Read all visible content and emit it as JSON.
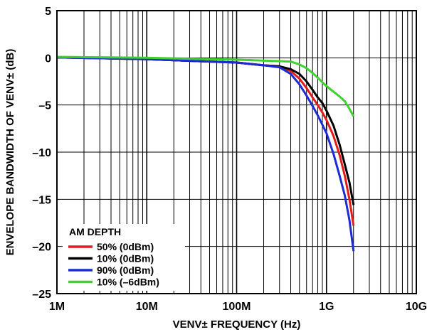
{
  "chart_data": {
    "type": "line",
    "xlabel": "VENV± FREQUENCY (Hz)",
    "ylabel": "ENVELOPE BANDWIDTH OF VENV± (dB)",
    "x_scale": "log",
    "xlim": [
      1000000,
      10000000000
    ],
    "ylim": [
      -25,
      5
    ],
    "x_ticks": [
      {
        "value": 1000000,
        "label": "1M"
      },
      {
        "value": 10000000,
        "label": "10M"
      },
      {
        "value": 100000000,
        "label": "100M"
      },
      {
        "value": 1000000000,
        "label": "1G"
      },
      {
        "value": 10000000000,
        "label": "10G"
      }
    ],
    "y_ticks": [
      {
        "value": 5,
        "label": "5"
      },
      {
        "value": 0,
        "label": "0"
      },
      {
        "value": -5,
        "label": "–5"
      },
      {
        "value": -10,
        "label": "–10"
      },
      {
        "value": -15,
        "label": "–15"
      },
      {
        "value": -20,
        "label": "–20"
      },
      {
        "value": -25,
        "label": "–25"
      }
    ],
    "grid": true,
    "legend": {
      "title": "AM DEPTH",
      "placement": "bottom-left"
    },
    "series": [
      {
        "name": "50% (0dBm)",
        "color": "#e31b1b",
        "points": [
          [
            1000000,
            0.05
          ],
          [
            10000000,
            -0.15
          ],
          [
            100000000,
            -0.5
          ],
          [
            200000000,
            -0.8
          ],
          [
            300000000,
            -0.9
          ],
          [
            400000000,
            -1.4
          ],
          [
            500000000,
            -2.2
          ],
          [
            600000000,
            -3.2
          ],
          [
            700000000,
            -4.2
          ],
          [
            800000000,
            -5.0
          ],
          [
            900000000,
            -5.8
          ],
          [
            1000000000,
            -6.6
          ],
          [
            1200000000,
            -8.3
          ],
          [
            1400000000,
            -10.3
          ],
          [
            1600000000,
            -12.5
          ],
          [
            1800000000,
            -15.0
          ],
          [
            2000000000,
            -17.8
          ]
        ]
      },
      {
        "name": "10% (0dBm)",
        "color": "#000000",
        "points": [
          [
            1000000,
            0.05
          ],
          [
            10000000,
            -0.15
          ],
          [
            100000000,
            -0.5
          ],
          [
            200000000,
            -0.8
          ],
          [
            300000000,
            -0.9
          ],
          [
            400000000,
            -1.2
          ],
          [
            500000000,
            -1.7
          ],
          [
            600000000,
            -2.5
          ],
          [
            700000000,
            -3.4
          ],
          [
            800000000,
            -4.2
          ],
          [
            900000000,
            -4.8
          ],
          [
            1000000000,
            -5.6
          ],
          [
            1200000000,
            -7.2
          ],
          [
            1400000000,
            -9.2
          ],
          [
            1600000000,
            -11.3
          ],
          [
            1800000000,
            -13.2
          ],
          [
            2000000000,
            -15.6
          ]
        ]
      },
      {
        "name": "90% (0dBm)",
        "color": "#1c2bd4",
        "points": [
          [
            1000000,
            0.05
          ],
          [
            10000000,
            -0.15
          ],
          [
            100000000,
            -0.5
          ],
          [
            200000000,
            -0.8
          ],
          [
            300000000,
            -1.0
          ],
          [
            400000000,
            -1.7
          ],
          [
            500000000,
            -2.8
          ],
          [
            600000000,
            -4.0
          ],
          [
            700000000,
            -5.1
          ],
          [
            800000000,
            -6.1
          ],
          [
            900000000,
            -7.1
          ],
          [
            1000000000,
            -8.0
          ],
          [
            1200000000,
            -10.2
          ],
          [
            1400000000,
            -12.5
          ],
          [
            1600000000,
            -14.6
          ],
          [
            1800000000,
            -17.2
          ],
          [
            2000000000,
            -20.5
          ]
        ]
      },
      {
        "name": "10% (–6dBm)",
        "color": "#3fd12e",
        "points": [
          [
            1000000,
            0.1
          ],
          [
            10000000,
            0.0
          ],
          [
            100000000,
            -0.2
          ],
          [
            200000000,
            -0.3
          ],
          [
            300000000,
            -0.35
          ],
          [
            400000000,
            -0.4
          ],
          [
            500000000,
            -0.7
          ],
          [
            600000000,
            -1.1
          ],
          [
            700000000,
            -1.6
          ],
          [
            800000000,
            -2.1
          ],
          [
            900000000,
            -2.6
          ],
          [
            1000000000,
            -3.0
          ],
          [
            1200000000,
            -3.6
          ],
          [
            1400000000,
            -4.1
          ],
          [
            1600000000,
            -4.6
          ],
          [
            1800000000,
            -5.4
          ],
          [
            2000000000,
            -6.2
          ]
        ]
      }
    ]
  }
}
